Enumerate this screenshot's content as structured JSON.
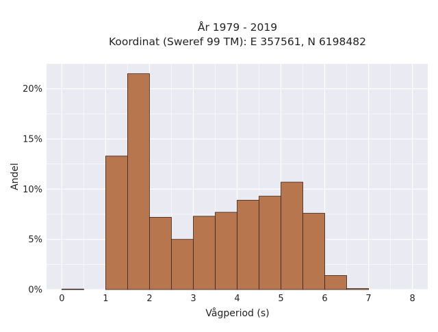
{
  "chart_data": {
    "type": "bar",
    "title_line1": "År 1979 - 2019",
    "title_line2": "Koordinat (Sweref 99 TM): E 357561, N 6198482",
    "xlabel": "Vågperiod (s)",
    "ylabel": "Andel",
    "xlim": [
      -0.35,
      8.35
    ],
    "ylim": [
      0,
      0.225
    ],
    "xticks": [
      0,
      1,
      2,
      3,
      4,
      5,
      6,
      7,
      8
    ],
    "yticks": [
      0,
      0.05,
      0.1,
      0.15,
      0.2
    ],
    "ytick_labels": [
      "0%",
      "5%",
      "10%",
      "15%",
      "20%"
    ],
    "bin_width": 0.5,
    "bins": [
      {
        "x0": 0.0,
        "x1": 0.5,
        "value": 0.0005
      },
      {
        "x0": 0.5,
        "x1": 1.0,
        "value": 0.0
      },
      {
        "x0": 1.0,
        "x1": 1.5,
        "value": 0.133
      },
      {
        "x0": 1.5,
        "x1": 2.0,
        "value": 0.215
      },
      {
        "x0": 2.0,
        "x1": 2.5,
        "value": 0.072
      },
      {
        "x0": 2.5,
        "x1": 3.0,
        "value": 0.05
      },
      {
        "x0": 3.0,
        "x1": 3.5,
        "value": 0.073
      },
      {
        "x0": 3.5,
        "x1": 4.0,
        "value": 0.077
      },
      {
        "x0": 4.0,
        "x1": 4.5,
        "value": 0.089
      },
      {
        "x0": 4.5,
        "x1": 5.0,
        "value": 0.093
      },
      {
        "x0": 5.0,
        "x1": 5.5,
        "value": 0.107
      },
      {
        "x0": 5.5,
        "x1": 6.0,
        "value": 0.076
      },
      {
        "x0": 6.0,
        "x1": 6.5,
        "value": 0.014
      },
      {
        "x0": 6.5,
        "x1": 7.0,
        "value": 0.001
      }
    ],
    "grid": true,
    "colors": {
      "bar_fill": "#b8764e",
      "bar_stroke": "#3a2418",
      "plot_background": "#eaeaf2",
      "grid": "#ffffff"
    }
  }
}
